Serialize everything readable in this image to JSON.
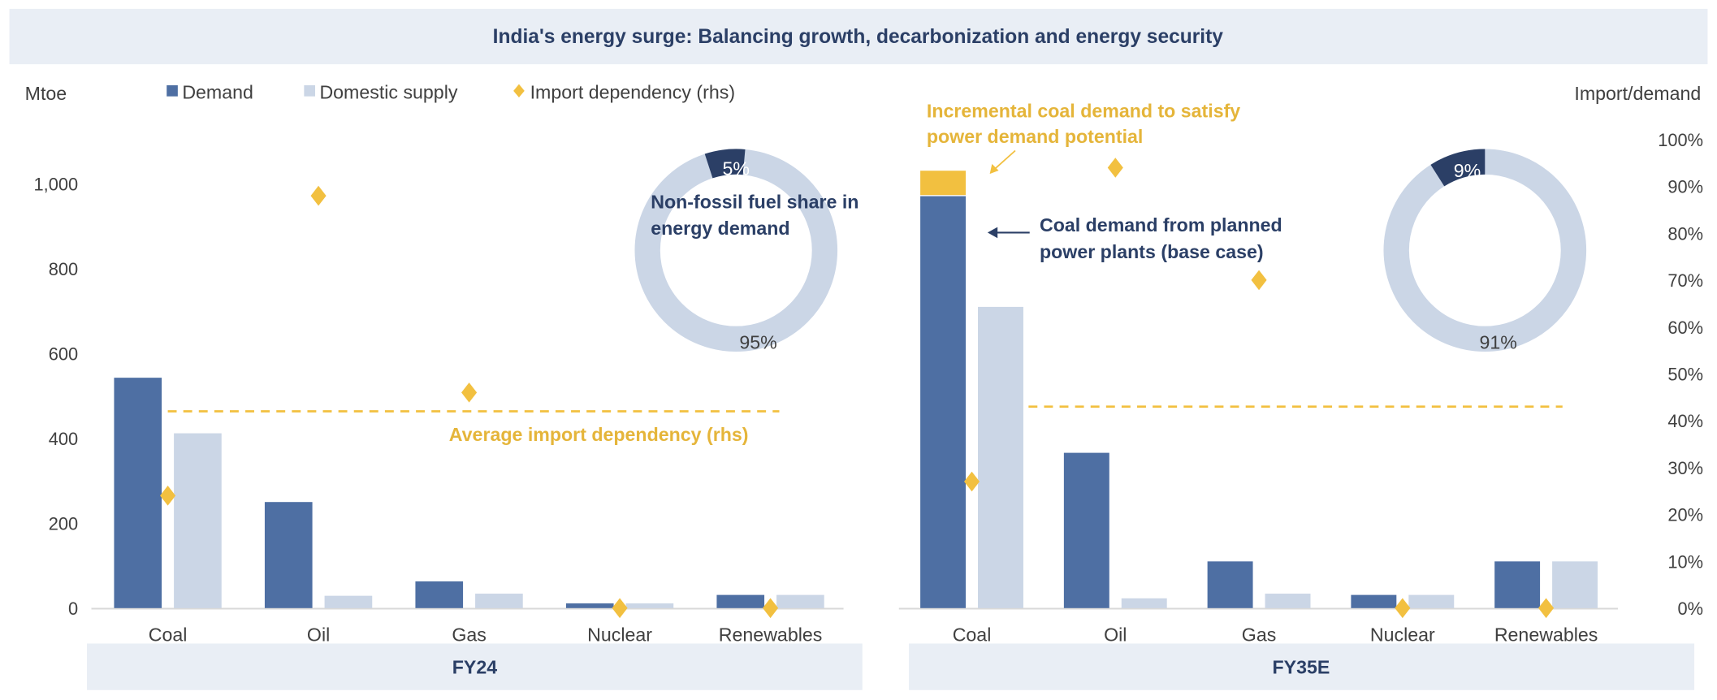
{
  "title": "India's energy surge: Balancing growth, decarbonization and energy security",
  "colors": {
    "demand": "#4e6fa3",
    "domestic_supply": "#cbd6e6",
    "import_dependency": "#f2c040",
    "incremental": "#f2c040",
    "navy": "#2b3f66",
    "band": "#e9eef5"
  },
  "legend": {
    "demand": "Demand",
    "domestic_supply": "Domestic supply",
    "import_dependency": "Import dependency (rhs)"
  },
  "axes": {
    "left_label": "Mtoe",
    "right_label": "Import/demand"
  },
  "chart_data": [
    {
      "type": "bar",
      "panel": "FY24",
      "categories": [
        "Coal",
        "Oil",
        "Gas",
        "Nuclear",
        "Renewables"
      ],
      "series": [
        {
          "name": "Demand",
          "values": [
            543,
            250,
            63,
            11,
            31
          ]
        },
        {
          "name": "Domestic supply",
          "values": [
            412,
            29,
            34,
            11,
            31
          ]
        },
        {
          "name": "Import dependency (rhs)",
          "axis": "right",
          "values": [
            24,
            88,
            46,
            0,
            0
          ]
        }
      ],
      "average_import_dependency": 42,
      "average_label": "Average import dependency (rhs)",
      "ylim": [
        0,
        1100
      ],
      "yticks": [
        0,
        200,
        400,
        600,
        800,
        1000
      ],
      "ytick_labels": [
        "0",
        "200",
        "400",
        "600",
        "800",
        "1,000"
      ],
      "y2lim": [
        0,
        100
      ],
      "donut": {
        "fossil": 95,
        "non_fossil": 5,
        "labels": [
          "5%",
          "95%"
        ],
        "caption_lines": [
          "Non-fossil fuel share in",
          "energy demand"
        ]
      }
    },
    {
      "type": "bar",
      "panel": "FY35E",
      "categories": [
        "Coal",
        "Oil",
        "Gas",
        "Nuclear",
        "Renewables"
      ],
      "series": [
        {
          "name": "Demand",
          "values": [
            971,
            366,
            110,
            31,
            110
          ]
        },
        {
          "name": "Incremental coal demand",
          "values": [
            60,
            0,
            0,
            0,
            0
          ]
        },
        {
          "name": "Domestic supply",
          "values": [
            710,
            23,
            34,
            31,
            110
          ]
        },
        {
          "name": "Import dependency (rhs)",
          "axis": "right",
          "values": [
            27,
            94,
            70,
            0,
            0
          ]
        }
      ],
      "average_import_dependency": 43,
      "ylim": [
        0,
        1100
      ],
      "y2lim": [
        0,
        100
      ],
      "y2ticks": [
        0,
        10,
        20,
        30,
        40,
        50,
        60,
        70,
        80,
        90,
        100
      ],
      "y2tick_labels": [
        "0%",
        "10%",
        "20%",
        "30%",
        "40%",
        "50%",
        "60%",
        "70%",
        "80%",
        "90%",
        "100%"
      ],
      "donut": {
        "fossil": 91,
        "non_fossil": 9,
        "labels": [
          "9%",
          "91%"
        ]
      },
      "annotations": {
        "incremental_lines": [
          "Incremental coal demand to satisfy",
          "power demand potential"
        ],
        "base_case_lines": [
          "Coal demand from planned",
          "power plants (base case)"
        ]
      }
    }
  ]
}
